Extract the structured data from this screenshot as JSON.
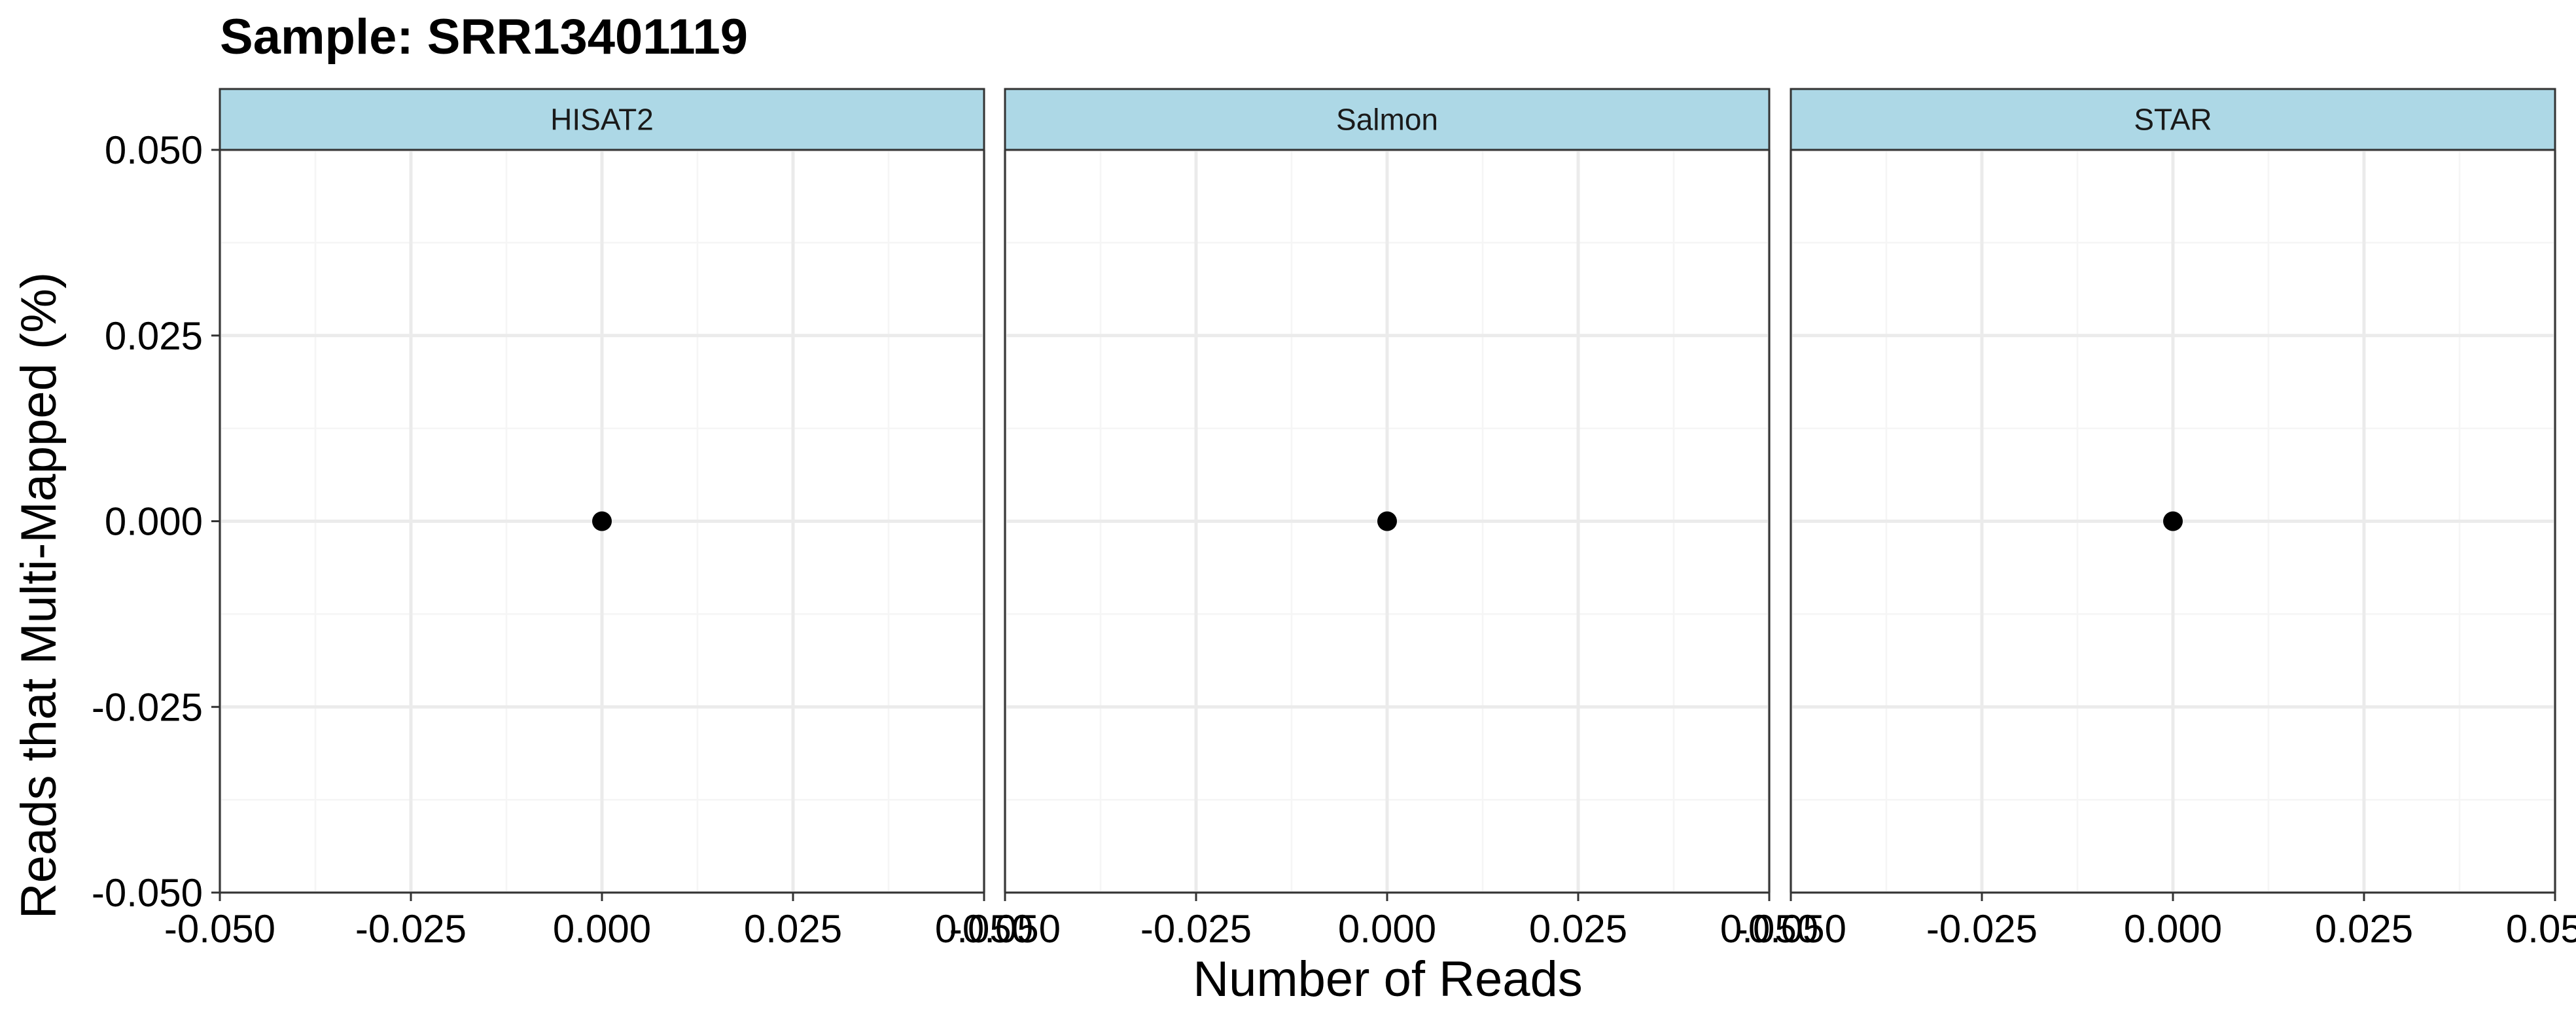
{
  "chart_data": {
    "type": "scatter",
    "title": "Sample: SRR13401119",
    "xlabel": "Number of Reads",
    "ylabel": "Reads that Multi-Mapped (%)",
    "xlim": [
      -0.05,
      0.05
    ],
    "ylim": [
      -0.05,
      0.05
    ],
    "x_ticks": [
      "-0.050",
      "-0.025",
      "0.000",
      "0.025",
      "0.050"
    ],
    "y_ticks": [
      "0.050",
      "0.025",
      "0.000",
      "-0.025",
      "-0.050"
    ],
    "x_tick_values": [
      -0.05,
      -0.025,
      0,
      0.025,
      0.05
    ],
    "y_tick_values": [
      0.05,
      0.025,
      0,
      -0.025,
      -0.05
    ],
    "grid": true,
    "panels": [
      {
        "facet": "HISAT2",
        "points": [
          {
            "x": 0,
            "y": 0
          }
        ]
      },
      {
        "facet": "Salmon",
        "points": [
          {
            "x": 0,
            "y": 0
          }
        ]
      },
      {
        "facet": "STAR",
        "points": [
          {
            "x": 0,
            "y": 0
          }
        ]
      }
    ],
    "colors": {
      "strip_fill": "#add8e6",
      "point": "#000000",
      "grid_major": "#ebebeb",
      "grid_minor": "#f5f5f5",
      "panel_border": "#333333"
    }
  }
}
